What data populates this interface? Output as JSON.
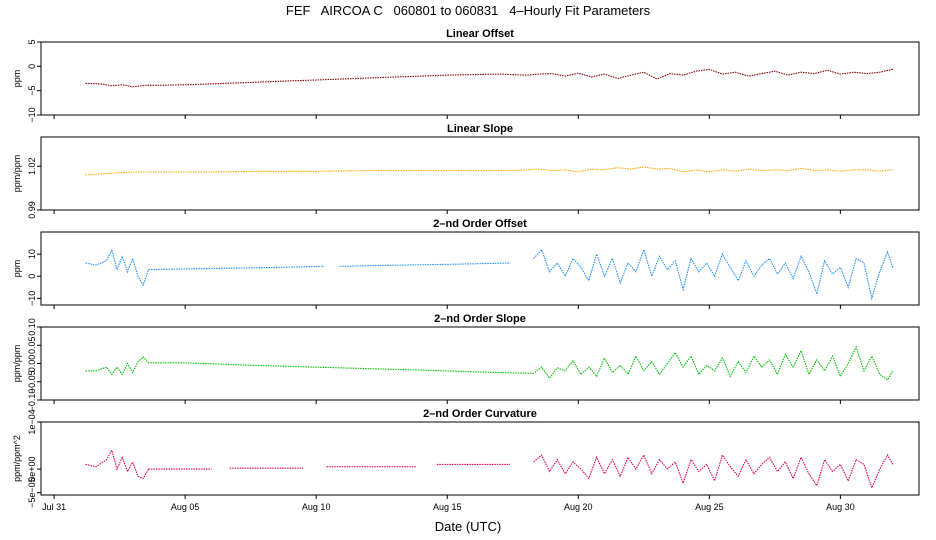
{
  "title": "FEF   AIRCOA C   060801 to 060831   4–Hourly Fit Parameters",
  "xlabel": "Date (UTC)",
  "x_ticks": [
    {
      "day": 0,
      "label": "Jul 31"
    },
    {
      "day": 5,
      "label": "Aug 05"
    },
    {
      "day": 10,
      "label": "Aug 10"
    },
    {
      "day": 15,
      "label": "Aug 15"
    },
    {
      "day": 20,
      "label": "Aug 20"
    },
    {
      "day": 25,
      "label": "Aug 25"
    },
    {
      "day": 30,
      "label": "Aug 30"
    }
  ],
  "chart_data": [
    {
      "type": "line",
      "title": "Linear Offset",
      "ylabel": "ppm",
      "color": "#8b0000",
      "ylim": [
        -10,
        5
      ],
      "yticks": [
        {
          "v": 5,
          "label": "5"
        },
        {
          "v": 0,
          "label": "0"
        },
        {
          "v": -5,
          "label": "−5"
        },
        {
          "v": -10,
          "label": "−10"
        }
      ],
      "segments": [
        {
          "x": [
            1.2,
            1.8,
            2.2,
            2.6,
            3.0,
            3.5,
            4.0,
            5.0,
            6.0,
            7.0,
            8.0,
            9.0,
            10.0,
            11.0,
            12.0,
            13.0,
            14.0,
            15.0,
            16.0,
            17.0,
            18.0,
            18.5,
            19.0,
            19.5,
            20.0,
            20.5,
            21.0,
            21.5,
            22.0,
            22.5,
            23.0,
            23.5,
            24.0,
            24.5,
            25.0,
            25.5,
            26.0,
            26.5,
            27.0,
            27.5,
            28.0,
            28.5,
            29.0,
            29.5,
            30.0,
            30.5,
            31.0,
            31.5,
            32.0
          ],
          "y": [
            -3.5,
            -3.6,
            -4.0,
            -3.8,
            -4.2,
            -3.9,
            -3.9,
            -3.8,
            -3.6,
            -3.4,
            -3.2,
            -3.0,
            -2.8,
            -2.6,
            -2.4,
            -2.2,
            -2.0,
            -1.8,
            -1.7,
            -1.6,
            -1.8,
            -1.6,
            -1.5,
            -2.0,
            -1.4,
            -2.2,
            -1.6,
            -2.5,
            -1.8,
            -1.2,
            -2.6,
            -1.5,
            -1.8,
            -1.0,
            -0.6,
            -1.6,
            -1.2,
            -2.0,
            -1.5,
            -1.0,
            -1.8,
            -1.2,
            -1.5,
            -0.8,
            -1.6,
            -1.2,
            -1.5,
            -1.2,
            -0.6
          ]
        }
      ]
    },
    {
      "type": "line",
      "title": "Linear Slope",
      "ylabel": "ppm/ppm",
      "color": "#ffa500",
      "ylim": [
        0.99,
        1.04
      ],
      "yticks": [
        {
          "v": 0.99,
          "label": "0.99"
        },
        {
          "v": 1.02,
          "label": "1.02"
        }
      ],
      "segments": [
        {
          "x": [
            1.2,
            2.0,
            3.0,
            4.0,
            6.0,
            8.0,
            10.0,
            12.0,
            14.0,
            16.0,
            17.5,
            18.5,
            19.0,
            19.5,
            20.0,
            20.5,
            21.0,
            21.5,
            22.0,
            22.5,
            23.0,
            23.5,
            24.0,
            24.5,
            25.0,
            25.5,
            26.0,
            26.5,
            27.0,
            27.5,
            28.0,
            28.5,
            29.0,
            29.5,
            30.0,
            30.5,
            31.0,
            31.5,
            32.0
          ],
          "y": [
            1.014,
            1.015,
            1.016,
            1.016,
            1.016,
            1.0165,
            1.0165,
            1.017,
            1.017,
            1.017,
            1.017,
            1.018,
            1.017,
            1.0175,
            1.016,
            1.018,
            1.0175,
            1.019,
            1.018,
            1.0195,
            1.018,
            1.0185,
            1.016,
            1.0175,
            1.016,
            1.0175,
            1.0165,
            1.018,
            1.017,
            1.0175,
            1.017,
            1.0185,
            1.017,
            1.0175,
            1.0165,
            1.0175,
            1.0175,
            1.0165,
            1.0175
          ]
        }
      ]
    },
    {
      "type": "line",
      "title": "2–nd Order Offset",
      "ylabel": "ppm",
      "color": "#1e90ff",
      "ylim": [
        -13,
        20
      ],
      "yticks": [
        {
          "v": 10,
          "label": "10"
        },
        {
          "v": 0,
          "label": "0"
        },
        {
          "v": -10,
          "label": "−10"
        }
      ],
      "segments": [
        {
          "x": [
            1.2,
            1.6,
            2.0,
            2.2,
            2.4,
            2.6,
            2.8,
            3.0,
            3.2,
            3.4,
            3.6
          ],
          "y": [
            6,
            5,
            7,
            12,
            3,
            9,
            2,
            8,
            0,
            -4,
            3
          ]
        },
        {
          "x": [
            3.6,
            6.0,
            8.5,
            10.3
          ],
          "y": [
            3,
            3.5,
            4,
            4.5
          ]
        },
        {
          "x": [
            10.9,
            13.0,
            15.5,
            17.4
          ],
          "y": [
            4.5,
            5,
            5.5,
            6
          ]
        },
        {
          "x": [
            18.3,
            18.6,
            18.9,
            19.2,
            19.5,
            19.8,
            20.1,
            20.4,
            20.7,
            21.0,
            21.3,
            21.6,
            21.9,
            22.2,
            22.5,
            22.8,
            23.1,
            23.4,
            23.7,
            24.0,
            24.3,
            24.6,
            24.9,
            25.2,
            25.5,
            25.8,
            26.1,
            26.4,
            26.7,
            27.0,
            27.3,
            27.6,
            27.9,
            28.2,
            28.5,
            28.8,
            29.1,
            29.4,
            29.7,
            30.0,
            30.3,
            30.6,
            30.9,
            31.2,
            31.5,
            31.8,
            32.0
          ],
          "y": [
            8,
            12,
            2,
            6,
            0,
            8,
            4,
            -2,
            10,
            0,
            8,
            -3,
            6,
            2,
            12,
            0,
            9,
            3,
            7,
            -6,
            8,
            2,
            6,
            0,
            10,
            4,
            -2,
            7,
            0,
            5,
            8,
            1,
            6,
            -1,
            9,
            2,
            -8,
            7,
            1,
            4,
            -5,
            8,
            6,
            -10,
            2,
            11,
            4
          ]
        }
      ]
    },
    {
      "type": "line",
      "title": "2–nd Order Slope",
      "ylabel": "ppm/ppm",
      "color": "#00c000",
      "ylim": [
        -0.1,
        0.1
      ],
      "yticks": [
        {
          "v": 0.1,
          "label": "0.10"
        },
        {
          "v": 0.05,
          "label": "0.05"
        },
        {
          "v": 0.0,
          "label": "0.00"
        },
        {
          "v": -0.05,
          "label": "−0.05"
        },
        {
          "v": -0.1,
          "label": "−0.10"
        }
      ],
      "segments": [
        {
          "x": [
            1.2,
            1.6,
            2.0,
            2.2,
            2.4,
            2.6,
            2.8,
            3.0,
            3.2,
            3.4,
            3.6,
            5.0,
            8.0,
            11.0,
            14.0,
            17.0,
            18.3,
            18.6,
            18.9,
            19.2,
            19.5,
            19.8,
            20.1,
            20.4,
            20.7,
            21.0,
            21.3,
            21.6,
            21.9,
            22.2,
            22.5,
            22.8,
            23.1,
            23.4,
            23.7,
            24.0,
            24.3,
            24.6,
            24.9,
            25.2,
            25.5,
            25.8,
            26.1,
            26.4,
            26.7,
            27.0,
            27.3,
            27.6,
            27.9,
            28.2,
            28.5,
            28.8,
            29.1,
            29.4,
            29.7,
            30.0,
            30.3,
            30.6,
            30.9,
            31.2,
            31.5,
            31.8,
            32.0
          ],
          "y": [
            -0.02,
            -0.02,
            -0.01,
            -0.03,
            -0.01,
            -0.03,
            0.0,
            -0.025,
            0.005,
            0.018,
            0.002,
            0.002,
            -0.006,
            -0.012,
            -0.018,
            -0.025,
            -0.027,
            -0.01,
            -0.04,
            -0.012,
            -0.02,
            0.008,
            -0.03,
            -0.01,
            -0.035,
            0.015,
            -0.025,
            -0.005,
            -0.03,
            0.02,
            -0.02,
            0.005,
            -0.03,
            0.0,
            0.03,
            -0.01,
            0.02,
            -0.03,
            -0.005,
            -0.02,
            0.015,
            -0.035,
            0.005,
            -0.025,
            0.02,
            -0.01,
            0.01,
            -0.03,
            0.025,
            -0.01,
            0.035,
            -0.03,
            0.01,
            -0.02,
            0.02,
            -0.035,
            0.0,
            0.045,
            -0.02,
            0.02,
            -0.03,
            -0.045,
            -0.02
          ]
        }
      ]
    },
    {
      "type": "line",
      "title": "2–nd Order Curvature",
      "ylabel": "ppm/ppm^2",
      "color": "#e8004a",
      "ylim": [
        -5.5e-05,
        0.0001
      ],
      "yticks": [
        {
          "v": 0.0001,
          "label": "1e−04"
        },
        {
          "v": 0,
          "label": "0e+00"
        },
        {
          "v": -5e-05,
          "label": "−5e−05"
        }
      ],
      "segments": [
        {
          "x": [
            1.2,
            1.6,
            2.0,
            2.2,
            2.4,
            2.6,
            2.8,
            3.0,
            3.2,
            3.4,
            3.6
          ],
          "y": [
            1e-05,
            5e-06,
            2e-05,
            4e-05,
            0,
            2.5e-05,
            -5e-06,
            1.5e-05,
            -1.5e-05,
            -2e-05,
            0
          ]
        },
        {
          "x": [
            3.6,
            6.0
          ],
          "y": [
            0,
            0
          ]
        },
        {
          "x": [
            6.7,
            9.5
          ],
          "y": [
            2e-06,
            2e-06
          ]
        },
        {
          "x": [
            10.4,
            13.8
          ],
          "y": [
            5e-06,
            5e-06
          ]
        },
        {
          "x": [
            14.6,
            17.4
          ],
          "y": [
            1e-05,
            1e-05
          ]
        },
        {
          "x": [
            18.3,
            18.6,
            18.9,
            19.2,
            19.5,
            19.8,
            20.1,
            20.4,
            20.7,
            21.0,
            21.3,
            21.6,
            21.9,
            22.2,
            22.5,
            22.8,
            23.1,
            23.4,
            23.7,
            24.0,
            24.3,
            24.6,
            24.9,
            25.2,
            25.5,
            25.8,
            26.1,
            26.4,
            26.7,
            27.0,
            27.3,
            27.6,
            27.9,
            28.2,
            28.5,
            28.8,
            29.1,
            29.4,
            29.7,
            30.0,
            30.3,
            30.6,
            30.9,
            31.2,
            31.5,
            31.8,
            32.0
          ],
          "y": [
            1.5e-05,
            3e-05,
            -5e-06,
            2e-05,
            -1e-05,
            1.5e-05,
            0,
            -2e-05,
            2.5e-05,
            -1e-05,
            2e-05,
            -1.5e-05,
            2.5e-05,
            0,
            3e-05,
            -1e-05,
            2e-05,
            0,
            1.5e-05,
            -3e-05,
            2e-05,
            -5e-06,
            1e-05,
            -2.5e-05,
            3e-05,
            5e-06,
            -1.5e-05,
            2e-05,
            -1e-05,
            1e-05,
            2.5e-05,
            -5e-06,
            1.5e-05,
            -2e-05,
            2.5e-05,
            -1e-05,
            -3.5e-05,
            2e-05,
            -5e-06,
            1e-05,
            -2.5e-05,
            2e-05,
            1e-05,
            -4e-05,
            0,
            3e-05,
            1e-05
          ]
        }
      ]
    }
  ]
}
